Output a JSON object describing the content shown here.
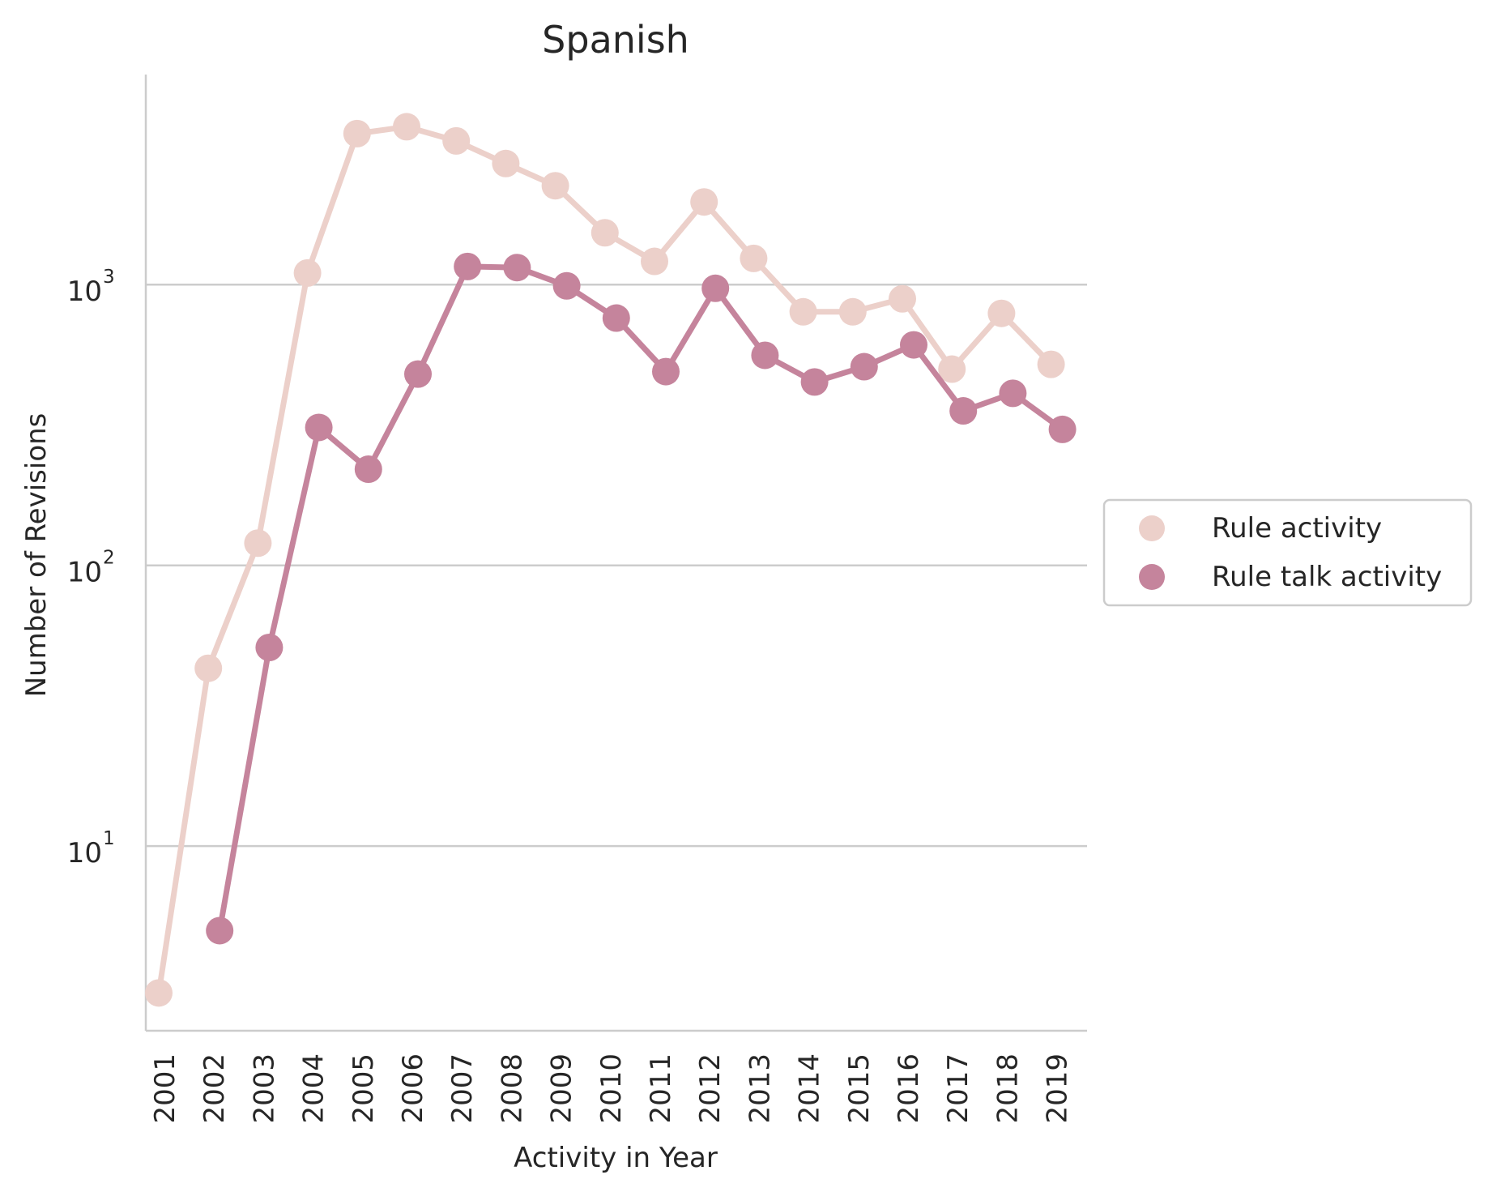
{
  "chart_data": {
    "type": "line",
    "title": "Spanish",
    "xlabel": "Activity in Year",
    "ylabel": "Number of Revisions",
    "yscale": "log",
    "ylim": [
      2.2,
      5600
    ],
    "y_ticks": [
      {
        "value": 10,
        "base": "10",
        "exp": "1"
      },
      {
        "value": 100,
        "base": "10",
        "exp": "2"
      },
      {
        "value": 1000,
        "base": "10",
        "exp": "3"
      }
    ],
    "categories": [
      "2001",
      "2002",
      "2003",
      "2004",
      "2005",
      "2006",
      "2007",
      "2008",
      "2009",
      "2010",
      "2011",
      "2012",
      "2013",
      "2014",
      "2015",
      "2016",
      "2017",
      "2018",
      "2019"
    ],
    "legend_position": "right",
    "series": [
      {
        "name": "Rule activity",
        "color": "#ecd0ca",
        "values": [
          3,
          43,
          120,
          1100,
          3450,
          3650,
          3250,
          2700,
          2250,
          1530,
          1210,
          1970,
          1240,
          800,
          800,
          890,
          500,
          790,
          520
        ]
      },
      {
        "name": "Rule talk activity",
        "color": "#c5849c",
        "values": [
          null,
          5,
          51,
          310,
          220,
          480,
          1160,
          1150,
          990,
          760,
          490,
          970,
          560,
          450,
          510,
          610,
          355,
          410,
          305
        ]
      }
    ]
  }
}
